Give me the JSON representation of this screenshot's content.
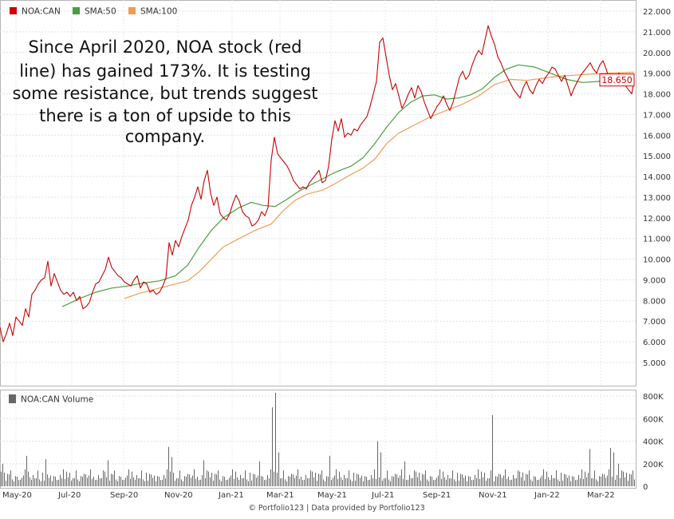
{
  "chart_data": {
    "type": "line",
    "legend": [
      {
        "name": "NOA:CAN",
        "color": "#cc0000"
      },
      {
        "name": "SMA:50",
        "color": "#4a9e3f"
      },
      {
        "name": "SMA:100",
        "color": "#f59a55"
      }
    ],
    "x_tick_labels": [
      "May-20",
      "Jul-20",
      "Sep-20",
      "Nov-20",
      "Jan-21",
      "Mar-21",
      "May-21",
      "Jul-21",
      "Sep-21",
      "Nov-21",
      "Jan-22",
      "Mar-22"
    ],
    "ylim": [
      5,
      22
    ],
    "y_tick_labels": [
      "5.000",
      "6.000",
      "7.000",
      "8.000",
      "9.000",
      "10.000",
      "11.000",
      "12.000",
      "13.000",
      "14.000",
      "15.000",
      "16.000",
      "17.000",
      "18.000",
      "19.000",
      "20.000",
      "21.000",
      "22.000"
    ],
    "last_price_label": "18.650",
    "last_price": 18.65,
    "annotation": [
      "Since April 2020, NOA stock (red",
      "line) has gained 173%. It is testing",
      "some resistance, but trends suggest",
      "there is a ton of upside to this",
      "company."
    ],
    "price_series": {
      "name": "NOA:CAN",
      "color": "#cc0000",
      "points": [
        [
          0,
          6.7
        ],
        [
          4,
          6.0
        ],
        [
          8,
          6.4
        ],
        [
          12,
          6.9
        ],
        [
          16,
          6.3
        ],
        [
          20,
          7.2
        ],
        [
          24,
          7.0
        ],
        [
          28,
          6.8
        ],
        [
          32,
          7.6
        ],
        [
          36,
          7.2
        ],
        [
          40,
          8.3
        ],
        [
          44,
          8.5
        ],
        [
          48,
          8.8
        ],
        [
          52,
          9.0
        ],
        [
          56,
          9.1
        ],
        [
          60,
          9.9
        ],
        [
          64,
          8.7
        ],
        [
          68,
          9.3
        ],
        [
          72,
          8.9
        ],
        [
          76,
          8.5
        ],
        [
          80,
          8.3
        ],
        [
          84,
          8.4
        ],
        [
          88,
          8.2
        ],
        [
          92,
          8.4
        ],
        [
          96,
          8.0
        ],
        [
          100,
          8.2
        ],
        [
          104,
          7.6
        ],
        [
          108,
          7.7
        ],
        [
          112,
          7.9
        ],
        [
          116,
          8.4
        ],
        [
          120,
          8.8
        ],
        [
          124,
          8.9
        ],
        [
          128,
          9.2
        ],
        [
          132,
          9.5
        ],
        [
          136,
          10.1
        ],
        [
          140,
          9.6
        ],
        [
          144,
          9.4
        ],
        [
          148,
          9.2
        ],
        [
          152,
          9.1
        ],
        [
          156,
          8.9
        ],
        [
          160,
          8.8
        ],
        [
          164,
          8.7
        ],
        [
          168,
          9.0
        ],
        [
          172,
          9.2
        ],
        [
          176,
          8.6
        ],
        [
          180,
          8.9
        ],
        [
          184,
          8.8
        ],
        [
          188,
          8.4
        ],
        [
          192,
          8.5
        ],
        [
          196,
          8.3
        ],
        [
          200,
          8.4
        ],
        [
          204,
          8.7
        ],
        [
          208,
          9.1
        ],
        [
          212,
          10.8
        ],
        [
          216,
          10.2
        ],
        [
          220,
          10.9
        ],
        [
          224,
          10.6
        ],
        [
          228,
          11.1
        ],
        [
          232,
          11.5
        ],
        [
          236,
          11.9
        ],
        [
          240,
          12.6
        ],
        [
          244,
          13.0
        ],
        [
          248,
          13.5
        ],
        [
          252,
          12.9
        ],
        [
          256,
          13.8
        ],
        [
          260,
          14.3
        ],
        [
          264,
          13.2
        ],
        [
          268,
          12.6
        ],
        [
          272,
          13.0
        ],
        [
          276,
          12.2
        ],
        [
          280,
          12.0
        ],
        [
          284,
          11.9
        ],
        [
          288,
          12.2
        ],
        [
          292,
          12.7
        ],
        [
          296,
          13.1
        ],
        [
          300,
          12.8
        ],
        [
          304,
          12.3
        ],
        [
          308,
          12.1
        ],
        [
          312,
          12.0
        ],
        [
          316,
          11.6
        ],
        [
          320,
          11.7
        ],
        [
          324,
          11.9
        ],
        [
          328,
          12.3
        ],
        [
          332,
          12.1
        ],
        [
          336,
          12.5
        ],
        [
          340,
          14.8
        ],
        [
          344,
          15.9
        ],
        [
          348,
          15.1
        ],
        [
          352,
          14.9
        ],
        [
          356,
          14.7
        ],
        [
          360,
          14.5
        ],
        [
          364,
          14.2
        ],
        [
          368,
          13.8
        ],
        [
          372,
          13.6
        ],
        [
          376,
          13.4
        ],
        [
          380,
          13.5
        ],
        [
          384,
          13.4
        ],
        [
          388,
          13.7
        ],
        [
          392,
          13.9
        ],
        [
          396,
          14.1
        ],
        [
          400,
          14.3
        ],
        [
          404,
          13.7
        ],
        [
          408,
          13.8
        ],
        [
          412,
          14.5
        ],
        [
          416,
          15.8
        ],
        [
          420,
          16.7
        ],
        [
          424,
          16.2
        ],
        [
          428,
          16.8
        ],
        [
          432,
          15.9
        ],
        [
          436,
          16.1
        ],
        [
          440,
          16.0
        ],
        [
          444,
          16.3
        ],
        [
          448,
          16.2
        ],
        [
          452,
          16.5
        ],
        [
          456,
          16.7
        ],
        [
          460,
          16.9
        ],
        [
          464,
          17.4
        ],
        [
          468,
          18.0
        ],
        [
          472,
          18.6
        ],
        [
          476,
          20.5
        ],
        [
          480,
          20.7
        ],
        [
          484,
          19.8
        ],
        [
          488,
          18.9
        ],
        [
          492,
          18.2
        ],
        [
          496,
          18.5
        ],
        [
          500,
          17.9
        ],
        [
          504,
          17.3
        ],
        [
          508,
          17.6
        ],
        [
          512,
          18.0
        ],
        [
          516,
          18.3
        ],
        [
          520,
          17.8
        ],
        [
          524,
          18.4
        ],
        [
          528,
          18.1
        ],
        [
          532,
          17.6
        ],
        [
          536,
          17.2
        ],
        [
          540,
          16.8
        ],
        [
          544,
          17.1
        ],
        [
          548,
          17.4
        ],
        [
          552,
          17.6
        ],
        [
          556,
          17.9
        ],
        [
          560,
          17.5
        ],
        [
          564,
          17.2
        ],
        [
          568,
          17.6
        ],
        [
          572,
          18.2
        ],
        [
          576,
          18.8
        ],
        [
          580,
          19.1
        ],
        [
          584,
          18.7
        ],
        [
          588,
          18.9
        ],
        [
          592,
          19.4
        ],
        [
          596,
          19.8
        ],
        [
          600,
          20.1
        ],
        [
          604,
          19.9
        ],
        [
          608,
          20.6
        ],
        [
          612,
          21.3
        ],
        [
          616,
          20.8
        ],
        [
          620,
          20.4
        ],
        [
          624,
          19.8
        ],
        [
          628,
          19.5
        ],
        [
          632,
          19.1
        ],
        [
          636,
          18.8
        ],
        [
          640,
          18.5
        ],
        [
          644,
          18.2
        ],
        [
          648,
          18.0
        ],
        [
          652,
          17.8
        ],
        [
          656,
          18.3
        ],
        [
          660,
          18.6
        ],
        [
          664,
          18.2
        ],
        [
          668,
          18.0
        ],
        [
          672,
          18.4
        ],
        [
          676,
          18.7
        ],
        [
          680,
          18.5
        ],
        [
          684,
          18.8
        ],
        [
          688,
          19.0
        ],
        [
          692,
          19.3
        ],
        [
          696,
          19.2
        ],
        [
          700,
          18.9
        ],
        [
          704,
          18.6
        ],
        [
          708,
          18.9
        ],
        [
          712,
          18.4
        ],
        [
          716,
          17.9
        ],
        [
          720,
          18.3
        ],
        [
          724,
          18.6
        ],
        [
          728,
          18.9
        ],
        [
          732,
          19.1
        ],
        [
          736,
          19.3
        ],
        [
          740,
          19.5
        ],
        [
          744,
          19.2
        ],
        [
          748,
          19.0
        ],
        [
          752,
          19.4
        ],
        [
          756,
          19.6
        ],
        [
          760,
          19.2
        ],
        [
          764,
          18.7
        ],
        [
          768,
          18.4
        ],
        [
          772,
          18.8
        ],
        [
          776,
          19.0
        ],
        [
          780,
          18.7
        ],
        [
          784,
          18.4
        ],
        [
          788,
          18.2
        ],
        [
          792,
          18.0
        ],
        [
          795,
          18.65
        ]
      ]
    },
    "sma50_series": {
      "name": "SMA:50",
      "color": "#4a9e3f",
      "points": [
        [
          78,
          7.7
        ],
        [
          100,
          8.1
        ],
        [
          120,
          8.4
        ],
        [
          140,
          8.6
        ],
        [
          160,
          8.7
        ],
        [
          180,
          8.85
        ],
        [
          200,
          8.95
        ],
        [
          220,
          9.2
        ],
        [
          235,
          9.7
        ],
        [
          250,
          10.6
        ],
        [
          265,
          11.4
        ],
        [
          280,
          12.0
        ],
        [
          300,
          12.5
        ],
        [
          315,
          12.75
        ],
        [
          330,
          12.6
        ],
        [
          345,
          12.55
        ],
        [
          360,
          12.9
        ],
        [
          375,
          13.3
        ],
        [
          390,
          13.6
        ],
        [
          405,
          13.9
        ],
        [
          420,
          14.2
        ],
        [
          440,
          14.5
        ],
        [
          455,
          14.9
        ],
        [
          470,
          15.6
        ],
        [
          485,
          16.4
        ],
        [
          500,
          17.1
        ],
        [
          515,
          17.6
        ],
        [
          530,
          17.9
        ],
        [
          545,
          17.95
        ],
        [
          560,
          17.75
        ],
        [
          575,
          17.8
        ],
        [
          590,
          17.95
        ],
        [
          605,
          18.25
        ],
        [
          620,
          18.8
        ],
        [
          635,
          19.2
        ],
        [
          650,
          19.4
        ],
        [
          670,
          19.3
        ],
        [
          690,
          19.0
        ],
        [
          710,
          18.7
        ],
        [
          730,
          18.55
        ],
        [
          750,
          18.6
        ],
        [
          770,
          18.8
        ],
        [
          790,
          18.9
        ]
      ]
    },
    "sma100_series": {
      "name": "SMA:100",
      "color": "#f59a55",
      "points": [
        [
          156,
          8.1
        ],
        [
          175,
          8.35
        ],
        [
          195,
          8.55
        ],
        [
          215,
          8.75
        ],
        [
          235,
          8.95
        ],
        [
          250,
          9.4
        ],
        [
          265,
          10.0
        ],
        [
          280,
          10.6
        ],
        [
          300,
          11.0
        ],
        [
          320,
          11.4
        ],
        [
          340,
          11.7
        ],
        [
          355,
          12.35
        ],
        [
          370,
          12.85
        ],
        [
          385,
          13.15
        ],
        [
          405,
          13.35
        ],
        [
          420,
          13.65
        ],
        [
          440,
          14.1
        ],
        [
          455,
          14.4
        ],
        [
          470,
          14.85
        ],
        [
          485,
          15.6
        ],
        [
          500,
          16.1
        ],
        [
          520,
          16.5
        ],
        [
          540,
          16.9
        ],
        [
          560,
          17.2
        ],
        [
          580,
          17.5
        ],
        [
          600,
          17.9
        ],
        [
          620,
          18.45
        ],
        [
          640,
          18.7
        ],
        [
          660,
          18.65
        ],
        [
          680,
          18.75
        ],
        [
          700,
          18.85
        ],
        [
          720,
          18.9
        ],
        [
          740,
          18.95
        ],
        [
          760,
          19.0
        ],
        [
          795,
          19.05
        ]
      ]
    },
    "volume_panel": {
      "label": "NOA:CAN Volume",
      "ylim": [
        0,
        800000
      ],
      "y_tick_labels": [
        "0",
        "200K",
        "400K",
        "600K",
        "800K"
      ],
      "bar_color": "#666666",
      "base_pattern": [
        45000,
        80000,
        55000,
        110000,
        70000,
        95000,
        60000,
        130000,
        85000,
        50000,
        100000,
        75000,
        140000,
        65000,
        90000,
        120000,
        58000,
        105000,
        72000,
        150000
      ],
      "spikes": [
        {
          "x": 4,
          "value": 200000
        },
        {
          "x": 34,
          "value": 270000
        },
        {
          "x": 58,
          "value": 240000
        },
        {
          "x": 136,
          "value": 230000
        },
        {
          "x": 212,
          "value": 350000
        },
        {
          "x": 216,
          "value": 260000
        },
        {
          "x": 256,
          "value": 230000
        },
        {
          "x": 326,
          "value": 220000
        },
        {
          "x": 342,
          "value": 700000
        },
        {
          "x": 346,
          "value": 830000
        },
        {
          "x": 350,
          "value": 300000
        },
        {
          "x": 414,
          "value": 270000
        },
        {
          "x": 474,
          "value": 400000
        },
        {
          "x": 478,
          "value": 300000
        },
        {
          "x": 508,
          "value": 220000
        },
        {
          "x": 618,
          "value": 630000
        },
        {
          "x": 740,
          "value": 330000
        },
        {
          "x": 766,
          "value": 340000
        },
        {
          "x": 770,
          "value": 300000
        },
        {
          "x": 776,
          "value": 200000
        }
      ]
    }
  },
  "footer": "© Portfolio123 | Data provided by Portfolio123"
}
